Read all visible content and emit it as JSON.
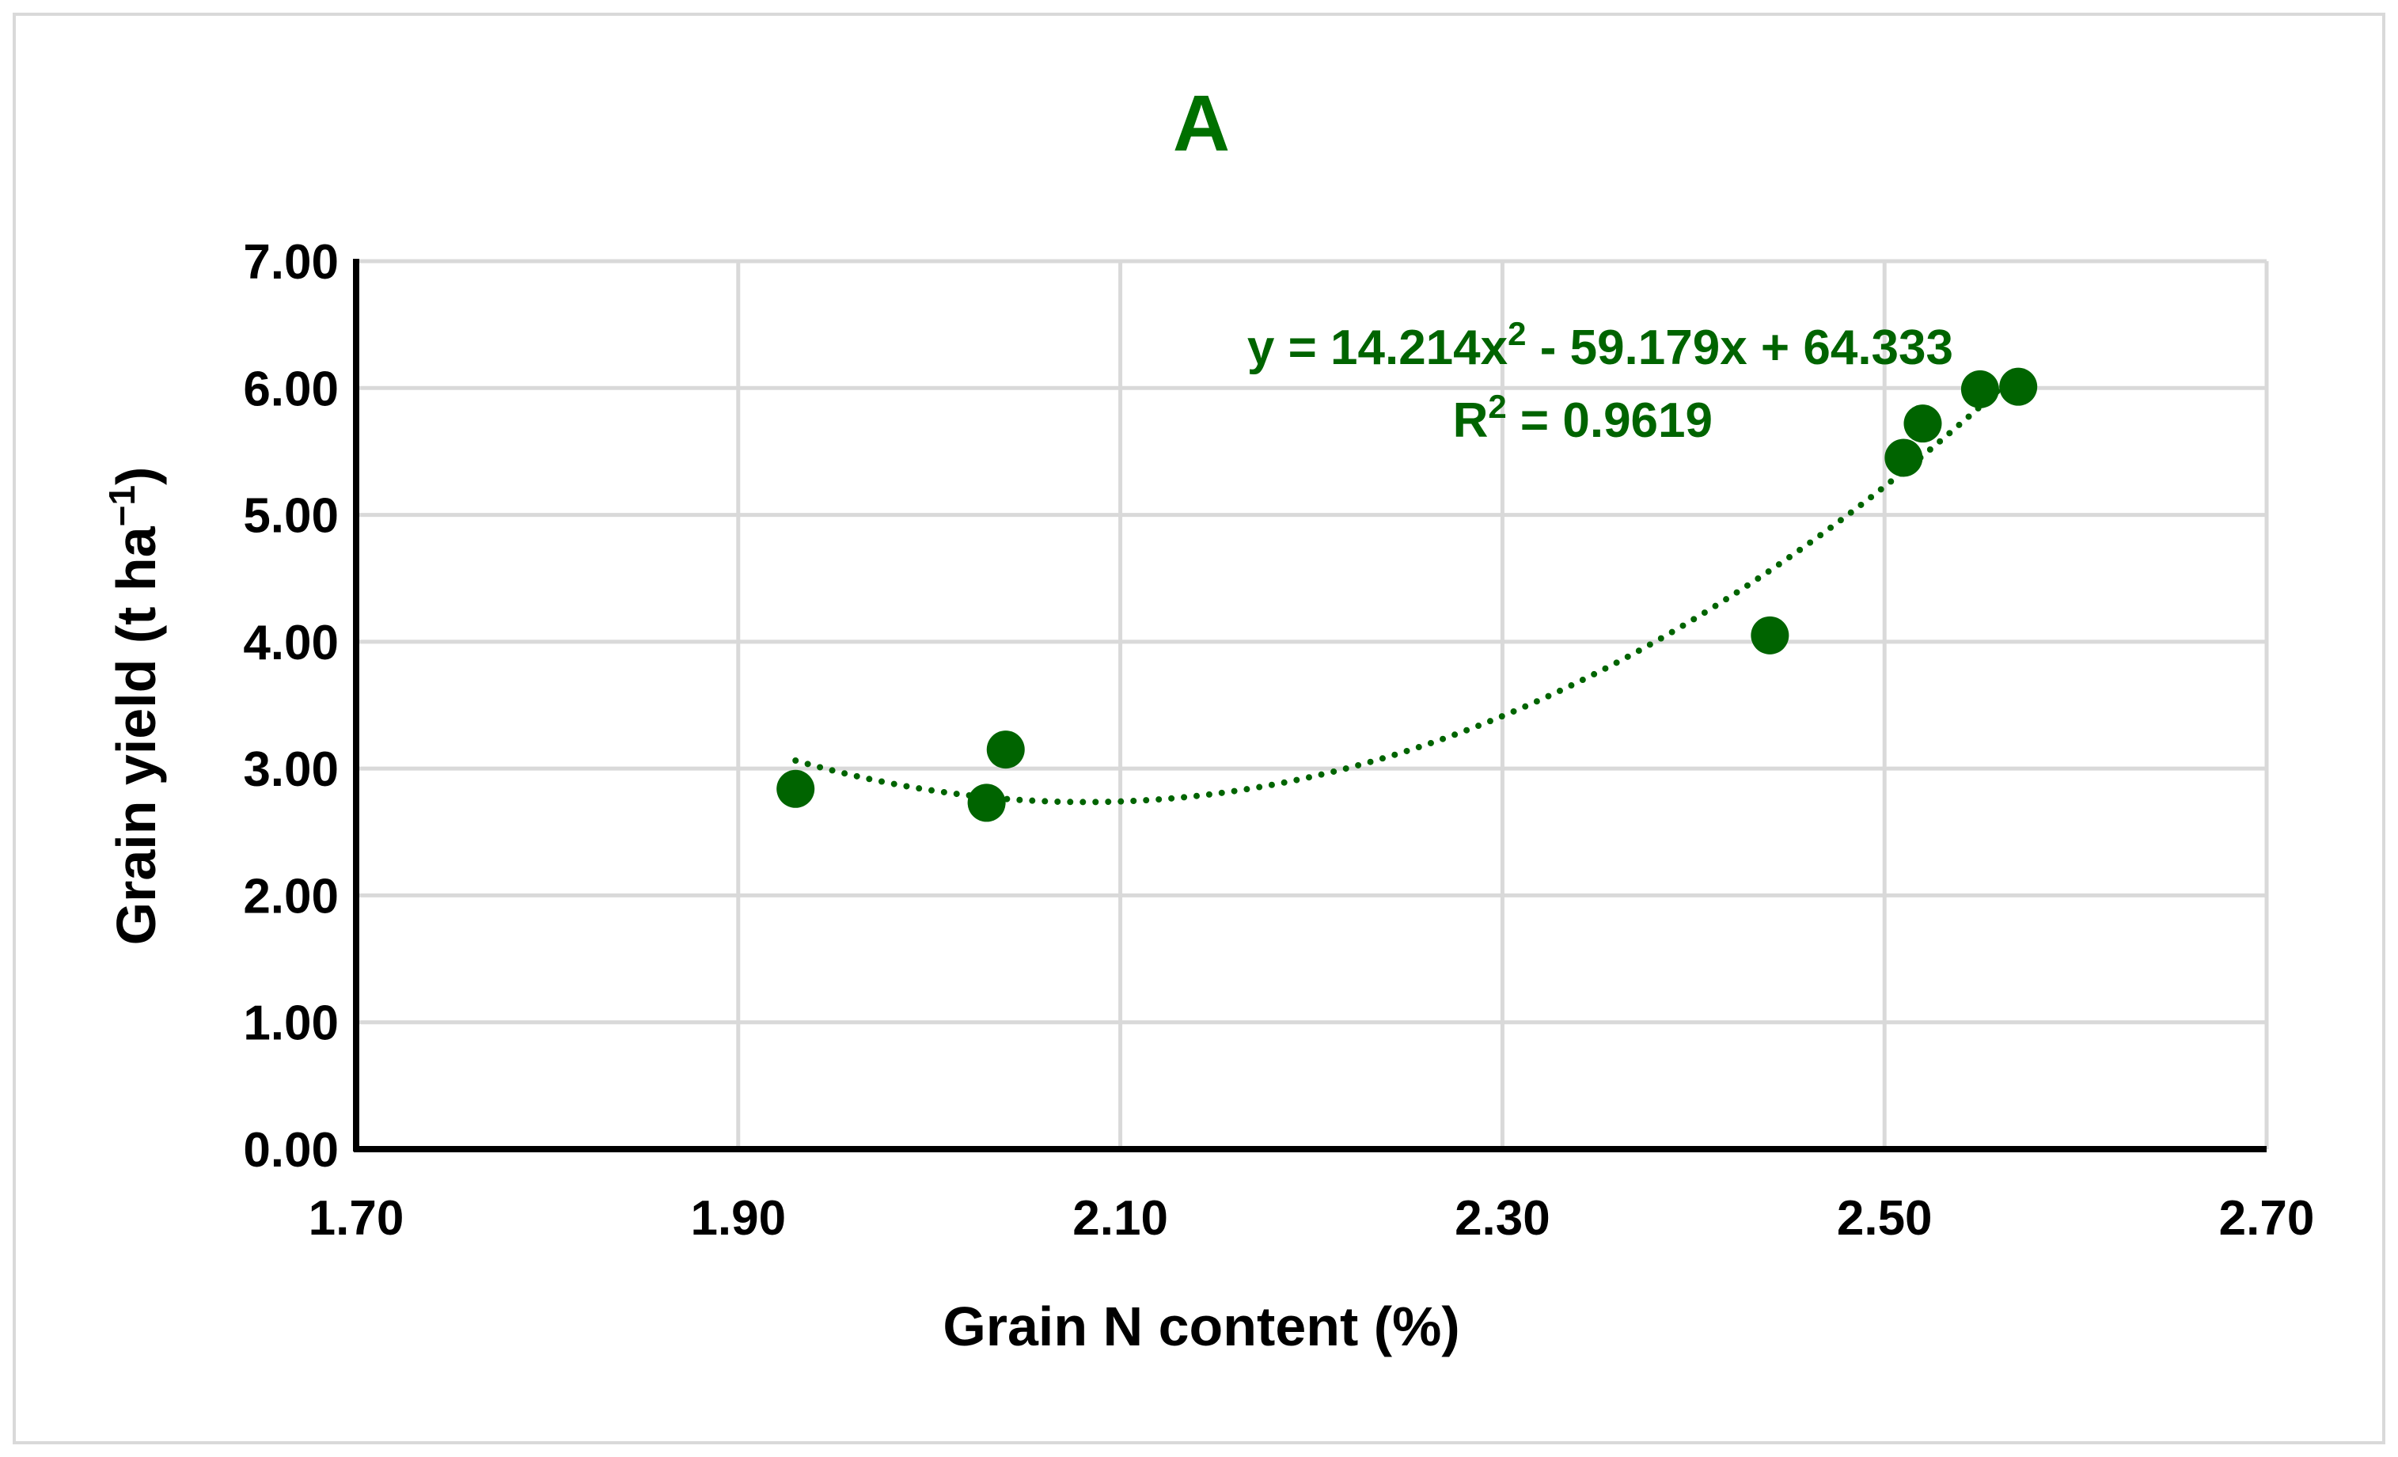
{
  "chart_data": {
    "type": "scatter",
    "title": "A",
    "xlabel": "Grain N content (%)",
    "ylabel_main": "Grain yield (t ha",
    "ylabel_sup": "−1",
    "ylabel_close": ")",
    "xlim": [
      1.7,
      2.7
    ],
    "ylim": [
      0,
      7
    ],
    "x_ticks": [
      1.7,
      1.9,
      2.1,
      2.3,
      2.5,
      2.7
    ],
    "x_tick_labels": [
      "1.70",
      "1.90",
      "2.10",
      "2.30",
      "2.50",
      "2.70"
    ],
    "y_ticks": [
      0,
      1,
      2,
      3,
      4,
      5,
      6,
      7
    ],
    "y_tick_labels": [
      "0.00",
      "1.00",
      "2.00",
      "3.00",
      "4.00",
      "5.00",
      "6.00",
      "7.00"
    ],
    "grid": true,
    "series": [
      {
        "name": "Grain yield",
        "x": [
          1.93,
          2.03,
          2.04,
          2.44,
          2.51,
          2.52,
          2.55,
          2.57
        ],
        "y": [
          2.84,
          2.73,
          3.15,
          4.05,
          5.45,
          5.72,
          5.99,
          6.01
        ]
      }
    ],
    "trendline": {
      "type": "polynomial",
      "order": 2,
      "coefficients": [
        14.214,
        -59.179,
        64.333
      ],
      "x_range": [
        1.93,
        2.57
      ],
      "style": "dotted"
    },
    "annotations": {
      "eq_a": "y = 14.214x",
      "eq_sup": "2",
      "eq_b": " - 59.179x + 64.333",
      "r2_a": "R",
      "r2_sup": "2",
      "r2_b": " = 0.9619"
    },
    "colors": {
      "series": "#006400",
      "grid": "#d9d9d9",
      "axis": "#000000",
      "title": "#007000"
    }
  }
}
